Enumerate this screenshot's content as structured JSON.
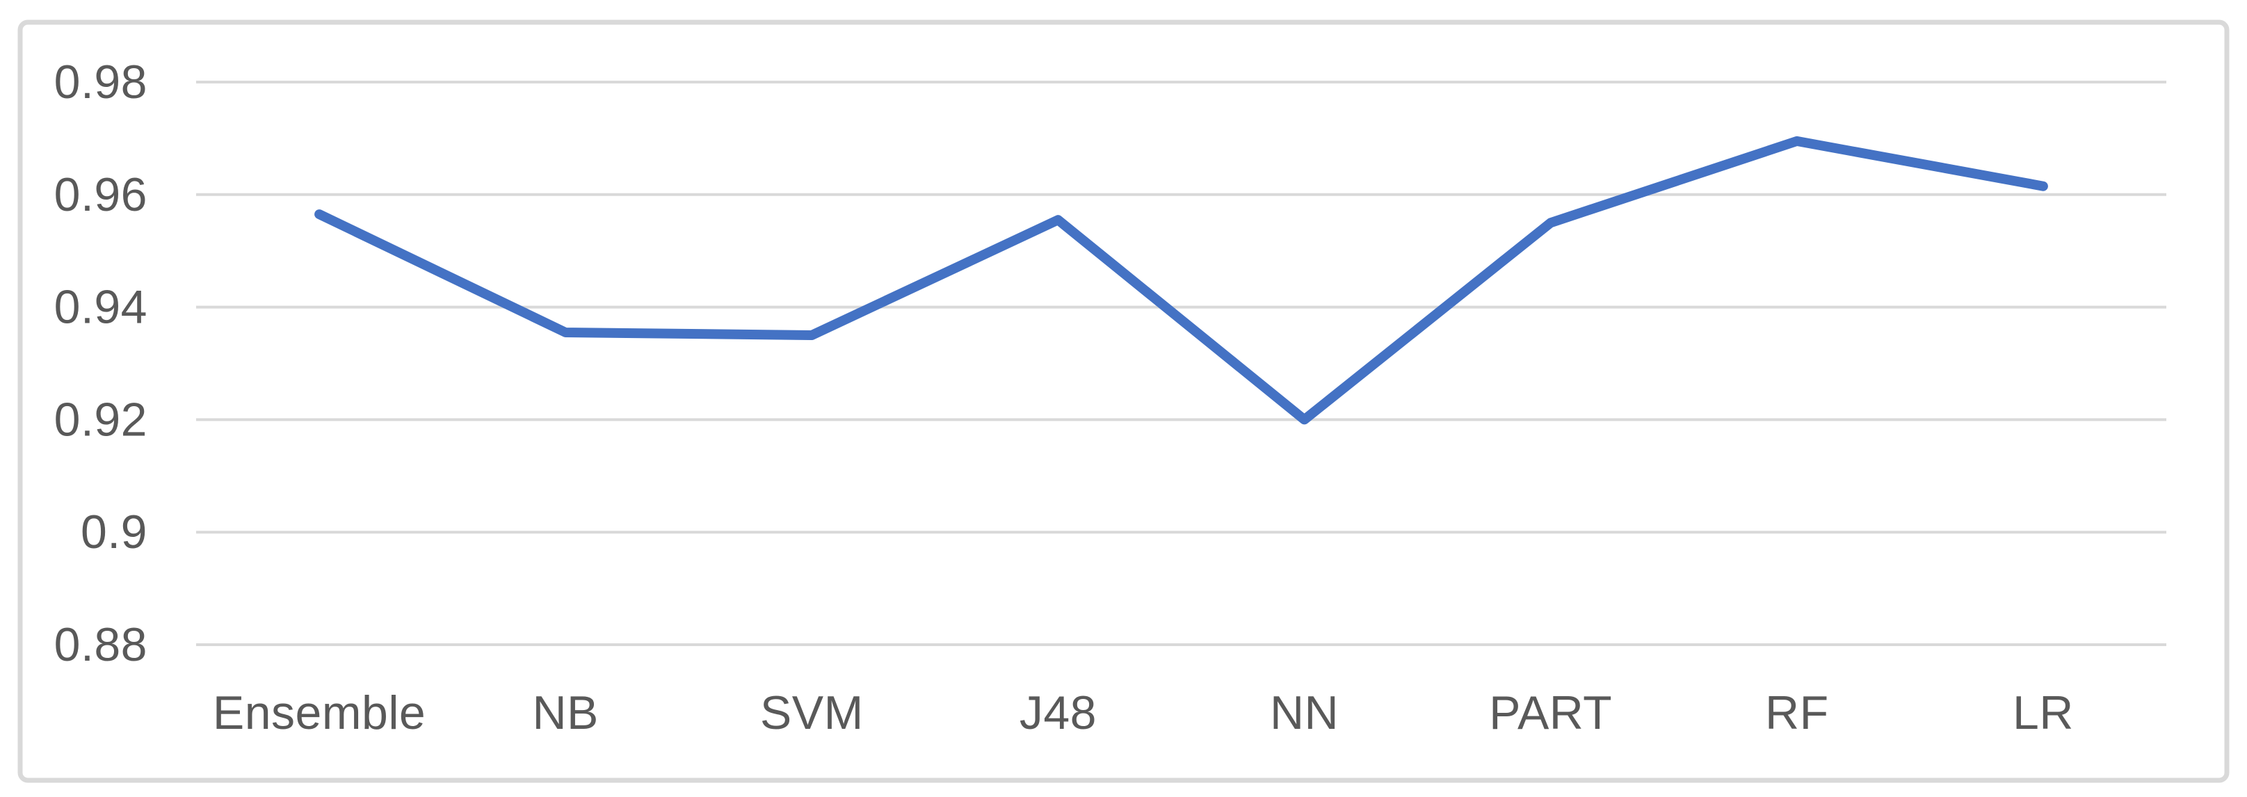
{
  "chart_data": {
    "type": "line",
    "categories": [
      "Ensemble",
      "NB",
      "SVM",
      "J48",
      "NN",
      "PART",
      "RF",
      "LR"
    ],
    "values": [
      0.9565,
      0.9355,
      0.935,
      0.9555,
      0.92,
      0.955,
      0.9695,
      0.9615
    ],
    "title": "",
    "xlabel": "",
    "ylabel": "",
    "ylim": [
      0.88,
      0.98
    ],
    "ytick_step": 0.02,
    "ytick_labels": [
      "0.98",
      "0.96",
      "0.94",
      "0.92",
      "0.9",
      "0.88"
    ],
    "grid": "horizontal",
    "legend": "none",
    "colors": {
      "line": "#4472C4",
      "gridline": "#D9D9D9",
      "frame_border": "#D9D9D9",
      "axis_text": "#595959",
      "background": "#FFFFFF"
    }
  }
}
